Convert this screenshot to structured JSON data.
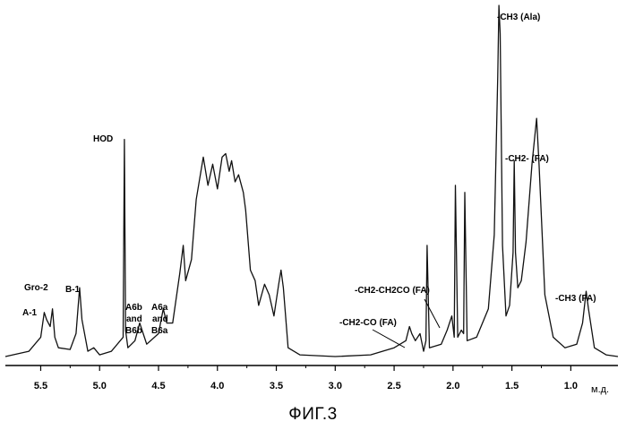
{
  "figure": {
    "caption": "ФИГ.3"
  },
  "chart_data": {
    "type": "line",
    "title": "",
    "xlabel": "м.д.",
    "ylabel": "",
    "x_reversed": true,
    "xlim": [
      5.8,
      0.6
    ],
    "ylim": [
      0,
      1
    ],
    "x_ticks": [
      5.5,
      5.0,
      4.5,
      4.0,
      3.5,
      3.0,
      2.5,
      2.0,
      1.5,
      1.0
    ],
    "x_tick_labels": [
      "5.5",
      "5.0",
      "4.5",
      "4.0",
      "3.5",
      "3.0",
      "2.5",
      "2.0",
      "1.5",
      "1.0"
    ],
    "grid": false,
    "series": [
      {
        "x": [
          5.8,
          5.6,
          5.5,
          5.47,
          5.45,
          5.42,
          5.4,
          5.38,
          5.35,
          5.25,
          5.2,
          5.17,
          5.15,
          5.1,
          5.05,
          5.0,
          4.9,
          4.8,
          4.79,
          4.78,
          4.76,
          4.7,
          4.66,
          4.64,
          4.6,
          4.5,
          4.46,
          4.43,
          4.38,
          4.32,
          4.29,
          4.27,
          4.22,
          4.18,
          4.12,
          4.08,
          4.04,
          4.0,
          3.96,
          3.93,
          3.9,
          3.88,
          3.85,
          3.82,
          3.78,
          3.76,
          3.72,
          3.68,
          3.65,
          3.6,
          3.56,
          3.52,
          3.48,
          3.46,
          3.44,
          3.4,
          3.3,
          3.0,
          2.7,
          2.5,
          2.4,
          2.37,
          2.35,
          2.32,
          2.28,
          2.25,
          2.23,
          2.22,
          2.2,
          2.1,
          2.05,
          2.03,
          2.01,
          1.99,
          1.98,
          1.96,
          1.93,
          1.91,
          1.9,
          1.88,
          1.8,
          1.7,
          1.65,
          1.62,
          1.61,
          1.6,
          1.58,
          1.55,
          1.52,
          1.49,
          1.48,
          1.47,
          1.45,
          1.42,
          1.38,
          1.33,
          1.29,
          1.27,
          1.22,
          1.15,
          1.05,
          0.95,
          0.9,
          0.87,
          0.85,
          0.8,
          0.7,
          0.6
        ],
        "y": [
          0.005,
          0.02,
          0.06,
          0.13,
          0.11,
          0.09,
          0.14,
          0.06,
          0.03,
          0.025,
          0.07,
          0.2,
          0.11,
          0.02,
          0.03,
          0.01,
          0.02,
          0.06,
          0.62,
          0.08,
          0.03,
          0.05,
          0.1,
          0.08,
          0.04,
          0.07,
          0.14,
          0.1,
          0.1,
          0.24,
          0.32,
          0.22,
          0.28,
          0.45,
          0.57,
          0.49,
          0.55,
          0.48,
          0.57,
          0.58,
          0.53,
          0.56,
          0.5,
          0.52,
          0.47,
          0.42,
          0.25,
          0.22,
          0.15,
          0.21,
          0.18,
          0.12,
          0.21,
          0.25,
          0.2,
          0.03,
          0.01,
          0.005,
          0.01,
          0.03,
          0.05,
          0.09,
          0.07,
          0.05,
          0.07,
          0.02,
          0.05,
          0.32,
          0.03,
          0.04,
          0.08,
          0.1,
          0.12,
          0.06,
          0.49,
          0.06,
          0.08,
          0.07,
          0.47,
          0.05,
          0.06,
          0.14,
          0.35,
          0.8,
          1.0,
          0.92,
          0.32,
          0.12,
          0.15,
          0.3,
          0.56,
          0.3,
          0.2,
          0.22,
          0.33,
          0.55,
          0.68,
          0.55,
          0.18,
          0.06,
          0.03,
          0.04,
          0.1,
          0.19,
          0.14,
          0.03,
          0.01,
          0.005
        ]
      }
    ],
    "annotations": [
      {
        "text": "A-1",
        "x": 5.45
      },
      {
        "text": "Gro-2",
        "x": 5.4
      },
      {
        "text": "B-1",
        "x": 5.17
      },
      {
        "text": "HOD",
        "x": 4.78
      },
      {
        "text": "A6b",
        "x": 4.65
      },
      {
        "text": "and",
        "x": 4.65
      },
      {
        "text": "B6b",
        "x": 4.65
      },
      {
        "text": "A6a",
        "x": 4.44
      },
      {
        "text": "and",
        "x": 4.44
      },
      {
        "text": "B6a",
        "x": 4.44
      },
      {
        "text": "-CH2-CO (FA)",
        "x": 2.36
      },
      {
        "text": "-CH2-CH2CO (FA)",
        "x": 2.02
      },
      {
        "text": "-CH3 (Ala)",
        "x": 1.6
      },
      {
        "text": "-CH2- (FA)",
        "x": 1.29
      },
      {
        "text": "-CH3 (FA)",
        "x": 0.87
      }
    ]
  }
}
